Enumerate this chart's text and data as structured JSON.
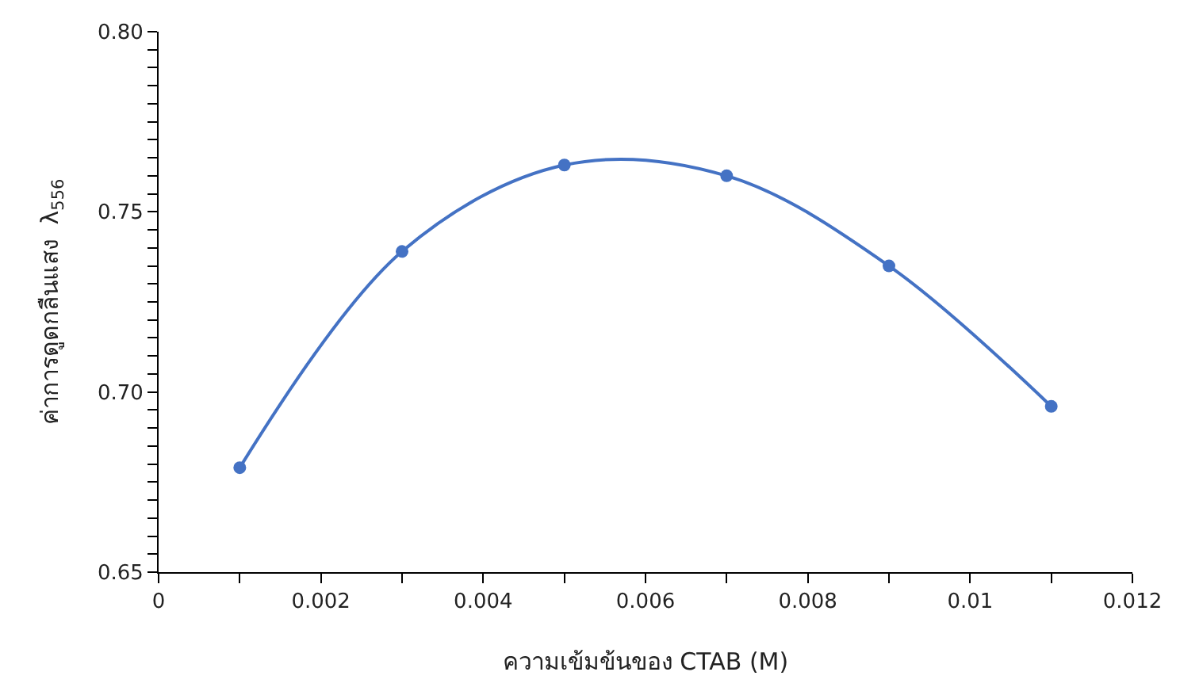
{
  "chart_data": {
    "type": "line",
    "xlabel": "ความเข้มข้นของ CTAB (M)",
    "ylabel": "ค่าการดูดกลืนแสง  λ$_{556}$",
    "x": [
      0.001,
      0.003,
      0.005,
      0.007,
      0.009,
      0.011
    ],
    "series": [
      {
        "color": "#4472c4",
        "values": [
          0.679,
          0.739,
          0.763,
          0.76,
          0.735,
          0.696
        ]
      }
    ],
    "xlim": [
      0,
      0.012
    ],
    "ylim": [
      0.65,
      0.8
    ],
    "xticks": [
      0,
      {
        "value": 0.001,
        "label": null
      },
      0.002,
      {
        "value": 0.003,
        "label": null
      },
      0.004,
      {
        "value": 0.005,
        "label": null
      },
      0.006,
      {
        "value": 0.007,
        "label": null
      },
      0.008,
      {
        "value": 0.009,
        "label": null
      },
      0.01,
      {
        "value": 0.011,
        "label": null
      },
      0.012
    ],
    "yticks": [
      0.65,
      {
        "value": 0.655,
        "label": null
      },
      {
        "value": 0.66,
        "label": null
      },
      {
        "value": 0.665,
        "label": null
      },
      {
        "value": 0.67,
        "label": null
      },
      {
        "value": 0.675,
        "label": null
      },
      {
        "value": 0.68,
        "label": null
      },
      {
        "value": 0.685,
        "label": null
      },
      {
        "value": 0.69,
        "label": null
      },
      {
        "value": 0.695,
        "label": null
      },
      {
        "value": 0.7,
        "label": "0.70"
      },
      {
        "value": 0.705,
        "label": null
      },
      {
        "value": 0.71,
        "label": null
      },
      {
        "value": 0.715,
        "label": null
      },
      {
        "value": 0.72,
        "label": null
      },
      {
        "value": 0.725,
        "label": null
      },
      {
        "value": 0.73,
        "label": null
      },
      {
        "value": 0.735,
        "label": null
      },
      {
        "value": 0.74,
        "label": null
      },
      {
        "value": 0.745,
        "label": null
      },
      {
        "value": 0.75,
        "label": "0.75"
      },
      {
        "value": 0.755,
        "label": null
      },
      {
        "value": 0.76,
        "label": null
      },
      {
        "value": 0.765,
        "label": null
      },
      {
        "value": 0.77,
        "label": null
      },
      {
        "value": 0.775,
        "label": null
      },
      {
        "value": 0.78,
        "label": null
      },
      {
        "value": 0.785,
        "label": null
      },
      {
        "value": 0.79,
        "label": null
      },
      {
        "value": 0.795,
        "label": null
      },
      {
        "value": 0.8,
        "label": "0.80"
      }
    ],
    "legend": false,
    "marker": "circle",
    "line_style": "solid"
  }
}
